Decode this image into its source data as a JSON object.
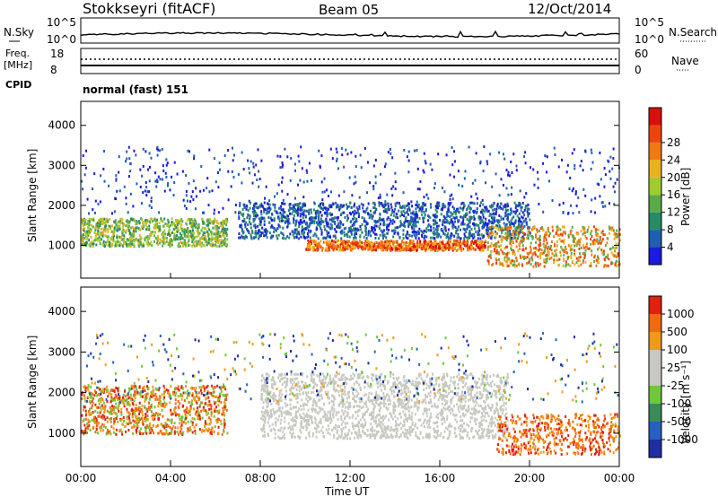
{
  "header": {
    "station": "Stokkseyri (fitACF)",
    "beam": "Beam 05",
    "date": "12/Oct/2014"
  },
  "strip_labels": {
    "nsky": "N.Sky",
    "nsky_ticks": [
      "10^5",
      "10^0"
    ],
    "nsearch": "N.Search",
    "freq_l1": "Freq.",
    "freq_l2": "[MHz]",
    "freq_ticks": [
      "18",
      "8"
    ],
    "nave_ticks": [
      "60",
      "0"
    ],
    "nave": "Nave",
    "cpid": "CPID",
    "cpid_value": "normal (fast) 151"
  },
  "chart_data": [
    {
      "type": "heatmap",
      "title": "",
      "ylabel": "Slant Range [km]",
      "xlabel": "",
      "ylim": [
        180,
        4600
      ],
      "yticks": [
        "1000",
        "2000",
        "3000",
        "4000"
      ],
      "colorbar": {
        "label": "Power [dB]",
        "ticks": [
          "4",
          "8",
          "12",
          "16",
          "20",
          "24",
          "28"
        ],
        "colors": [
          "#1a1ae0",
          "#1f5fb0",
          "#2a8a66",
          "#5aaa4a",
          "#9fcc2e",
          "#e8b21e",
          "#f07a12",
          "#ec4410",
          "#d80f0f"
        ]
      }
    },
    {
      "type": "heatmap",
      "title": "",
      "ylabel": "Slant Range [km]",
      "xlabel": "Time UT",
      "ylim": [
        180,
        4600
      ],
      "yticks": [
        "1000",
        "2000",
        "3000",
        "4000"
      ],
      "xticks": [
        "00:00",
        "04:00",
        "08:00",
        "12:00",
        "16:00",
        "20:00",
        "00:00"
      ],
      "colorbar": {
        "label": "Velocity [m s⁻¹]",
        "ticks": [
          "1000",
          "500",
          "100",
          "25",
          "-25",
          "-100",
          "-500",
          "-1000"
        ],
        "colors": [
          "#1e2ea0",
          "#2660c0",
          "#3a8a5a",
          "#6ec83a",
          "#c8c8c0",
          "#c8c8c0",
          "#f09a1a",
          "#f06a10",
          "#e02010"
        ]
      }
    }
  ]
}
